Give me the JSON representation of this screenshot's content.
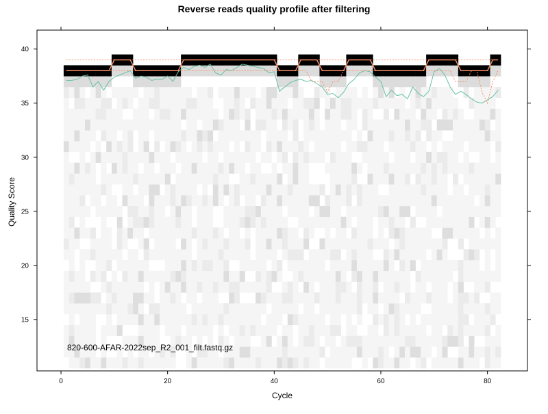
{
  "chart_data": {
    "type": "heatmap",
    "title": "Reverse reads quality profile after filtering",
    "xlabel": "Cycle",
    "ylabel": "Quality Score",
    "xlim": [
      -4.5,
      87.5
    ],
    "ylim": [
      10.25,
      41.75
    ],
    "x_ticks": [
      0,
      20,
      40,
      60,
      80
    ],
    "y_ticks": [
      15,
      20,
      25,
      30,
      35,
      40
    ],
    "cycles": [
      1,
      82
    ],
    "annotation": "820-600-AFAR-2022sep_R2_001_filt.fastq.gz",
    "colors": {
      "mean": "#66c2a5",
      "quartile": "#fc8d62",
      "heat_dark": "#000000",
      "heat_light": "#f5f5f5"
    },
    "series": [
      {
        "name": "",
        "values": [
          37.1,
          37.1,
          37.2,
          37.5,
          37.6,
          36.5,
          37.0,
          36.2,
          37.0,
          37.4,
          37.6,
          37.8,
          38.0,
          37.3,
          37.5,
          37.4,
          37.1,
          37.2,
          37.2,
          37.5,
          37.0,
          37.9,
          38.3,
          38.1,
          38.4,
          38.5,
          38.3,
          38.6,
          37.8,
          37.6,
          38.1,
          38.0,
          38.3,
          38.6,
          38.5,
          38.4,
          38.3,
          38.2,
          37.8,
          37.9,
          36.1,
          36.5,
          36.9,
          37.1,
          37.2,
          37.0,
          37.1,
          36.8,
          36.5,
          35.8,
          35.9,
          35.5,
          36.0,
          36.8,
          37.2,
          37.8,
          38.0,
          37.9,
          37.4,
          37.0,
          35.6,
          36.2,
          35.7,
          35.8,
          35.4,
          36.5,
          35.9,
          35.6,
          36.1,
          37.9,
          38.2,
          37.6,
          36.5,
          35.8,
          36.1,
          35.8,
          35.4,
          35.1,
          35.0,
          35.3,
          35.6,
          36.2
        ]
      },
      {
        "name": "",
        "values": [
          38,
          38,
          38,
          38,
          38,
          38,
          38,
          38,
          38,
          39,
          39,
          39,
          39,
          38,
          38,
          38,
          38,
          38,
          38,
          38,
          38,
          38,
          39,
          39,
          39,
          39,
          39,
          39,
          39,
          39,
          39,
          39,
          39,
          39,
          39,
          39,
          39,
          39,
          39,
          39,
          38,
          38,
          38,
          38,
          39,
          39,
          39,
          39,
          38,
          38,
          38,
          38,
          38,
          39,
          39,
          39,
          39,
          39,
          38,
          38,
          38,
          38,
          38,
          38,
          38,
          38,
          38,
          38,
          39,
          39,
          39,
          39,
          39,
          39,
          38,
          38,
          38,
          38,
          38,
          38,
          39,
          39
        ]
      },
      {
        "name": "",
        "values": [
          38,
          38,
          38,
          38,
          38,
          38,
          38,
          38,
          38,
          38,
          38,
          38,
          38,
          38,
          38,
          38,
          38,
          38,
          38,
          38,
          38,
          38,
          38,
          38,
          38,
          38,
          38,
          38,
          38,
          38,
          38,
          38,
          38,
          38,
          38,
          38,
          38,
          38,
          38,
          38,
          38,
          38,
          38,
          38,
          38,
          38,
          37,
          37,
          37,
          36,
          37,
          37,
          38,
          38,
          38,
          38,
          38,
          38,
          38,
          38,
          38,
          38,
          38,
          38,
          38,
          38,
          38,
          38,
          38,
          38,
          38,
          38,
          38,
          37,
          37,
          37,
          38,
          38,
          36,
          35,
          37,
          38
        ]
      },
      {
        "name": "",
        "values": [
          39,
          39,
          39,
          39,
          39,
          39,
          39,
          39,
          39,
          39,
          39,
          39,
          39,
          39,
          39,
          39,
          39,
          39,
          39,
          39,
          39,
          39,
          39,
          39,
          39,
          39,
          39,
          39,
          39,
          39,
          39,
          39,
          39,
          39,
          39,
          39,
          39,
          39,
          39,
          39,
          39,
          39,
          39,
          39,
          39,
          39,
          39,
          39,
          39,
          39,
          39,
          39,
          39,
          39,
          39,
          39,
          39,
          39,
          39,
          39,
          39,
          39,
          39,
          39,
          39,
          39,
          39,
          39,
          39,
          39,
          39,
          39,
          39,
          39,
          39,
          39,
          39,
          39,
          39,
          39,
          39,
          39
        ]
      }
    ]
  }
}
